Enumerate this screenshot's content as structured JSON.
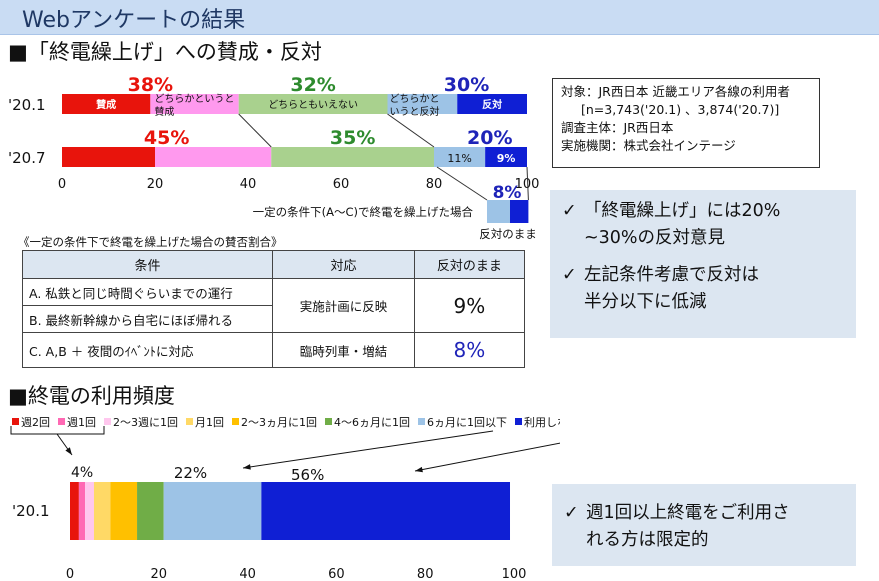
{
  "header": {
    "title": "Webアンケートの結果"
  },
  "section1": {
    "title": "■「終電繰上げ」への賛成・反対"
  },
  "section2": {
    "title": "■終電の利用頻度"
  },
  "chart_data": [
    {
      "type": "bar",
      "orientation": "horizontal-stacked",
      "categories": [
        "'20.1",
        "'20.7"
      ],
      "series": [
        {
          "name": "賛成",
          "values": [
            19,
            20
          ],
          "color": "#e8140c"
        },
        {
          "name": "どちらかというと賛成",
          "values": [
            19,
            25
          ],
          "color": "#ff99ee"
        },
        {
          "name": "どちらともいえない",
          "values": [
            32,
            35
          ],
          "color": "#a9d18e"
        },
        {
          "name": "どちらかというと反対",
          "values": [
            15,
            11
          ],
          "color": "#9dc3e6"
        },
        {
          "name": "反対",
          "values": [
            15,
            9
          ],
          "color": "#0f1fd4"
        }
      ],
      "group_labels": {
        "row1": [
          "38%",
          "32%",
          "30%"
        ],
        "row2": [
          "45%",
          "35%",
          "20%"
        ]
      },
      "segment_labels": {
        "row1": [
          "賛成",
          "どちらかというと賛成",
          "どちらともいえない",
          "どちらかと いうと反対",
          "反対"
        ],
        "row2": [
          "11%",
          "9%"
        ]
      },
      "xticks": [
        0,
        20,
        40,
        60,
        80,
        100
      ],
      "xlim": [
        0,
        100
      ],
      "sub_bar": {
        "label": "一定の条件下(A～C)で終電を繰上げた場合",
        "values": [
          5,
          4
        ],
        "top_label": "8%",
        "bottom_label": "反対のまま",
        "colors": [
          "#9dc3e6",
          "#0f1fd4"
        ]
      }
    },
    {
      "type": "bar",
      "orientation": "horizontal-stacked",
      "categories": [
        "'20.1"
      ],
      "series": [
        {
          "name": "週2回",
          "values": [
            2
          ],
          "color": "#e8140c"
        },
        {
          "name": "週1回",
          "values": [
            1.4
          ],
          "color": "#ff69b4"
        },
        {
          "name": "2～3週に1回",
          "values": [
            2
          ],
          "color": "#ffc7ee"
        },
        {
          "name": "月1回",
          "values": [
            3.7
          ],
          "color": "#ffd966"
        },
        {
          "name": "2～3ヵ月に1回",
          "values": [
            6
          ],
          "color": "#ffc000"
        },
        {
          "name": "4～6ヵ月に1回",
          "values": [
            6
          ],
          "color": "#70ad47"
        },
        {
          "name": "6ヵ月に1回以下",
          "values": [
            22
          ],
          "color": "#9dc3e6"
        },
        {
          "name": "利用しない",
          "values": [
            56
          ],
          "color": "#0f1fd4"
        }
      ],
      "annotations": [
        "4%",
        "22%",
        "56%"
      ],
      "xticks": [
        0,
        20,
        40,
        60,
        80,
        100
      ],
      "xlim": [
        0,
        100
      ]
    }
  ],
  "info_box": {
    "lines": [
      "対象：JR西日本 近畿エリア各線の利用者",
      "[n=3,743('20.1) 、3,874('20.7)]",
      "調査主体：JR西日本",
      "実施機関：株式会社インテージ"
    ]
  },
  "notes_top": [
    {
      "check": "✓",
      "text": "「終電繰上げ」には20%\n~30%の反対意見"
    },
    {
      "check": "✓",
      "text": "左記条件考慮で反対は\n半分以下に低減"
    }
  ],
  "notes_bottom": [
    {
      "check": "✓",
      "text": "週1回以上終電をご利用さ\nれる方は限定的"
    }
  ],
  "condition_table": {
    "caption": "《一定の条件下で終電を繰上げた場合の賛否割合》",
    "headers": [
      "条件",
      "対応",
      "反対のまま"
    ],
    "rows": [
      {
        "condition": "A. 私鉄と同じ時間ぐらいまでの運行"
      },
      {
        "condition": "B. 最終新幹線から自宅にほぼ帰れる"
      },
      {
        "condition": "C. A,B ＋ 夜間のｲﾍﾞﾝﾄに対応"
      }
    ],
    "groups": [
      {
        "response": "実施計画に反映",
        "result": "9%",
        "result_color": "#111111"
      },
      {
        "response": "臨時列車・増結",
        "result": "8%",
        "result_color": "#1f24b8"
      }
    ]
  }
}
